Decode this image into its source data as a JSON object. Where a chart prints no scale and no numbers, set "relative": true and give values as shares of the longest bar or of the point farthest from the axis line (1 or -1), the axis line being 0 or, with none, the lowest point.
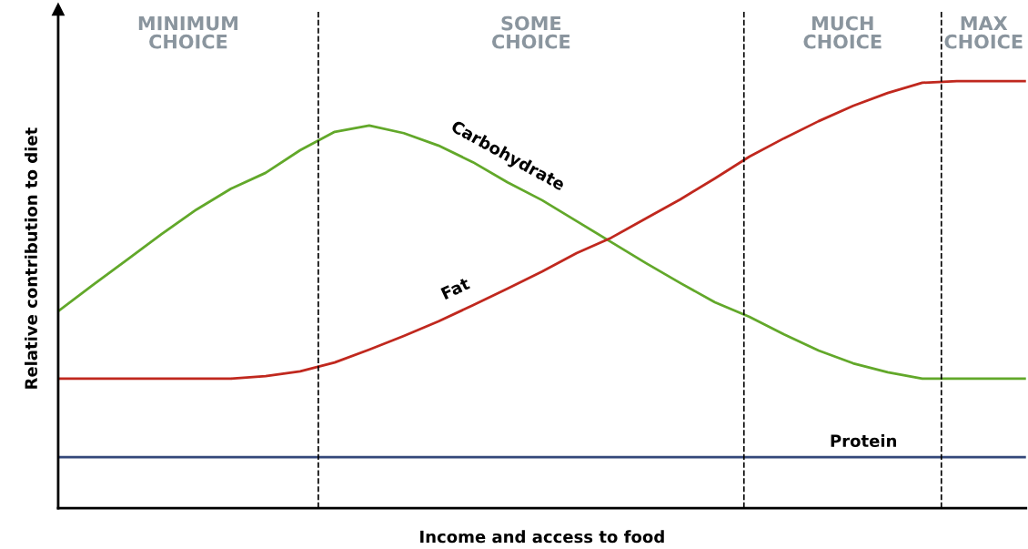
{
  "chart_data": {
    "type": "line",
    "relative": true,
    "xlabel": "Income and access to food",
    "ylabel": "Relative contribution to diet",
    "categories": [
      null,
      null,
      null,
      null,
      null,
      null,
      null,
      null,
      null,
      null,
      null,
      null,
      null,
      null,
      null,
      null,
      null,
      null,
      null,
      null,
      null,
      null,
      null,
      null,
      null,
      null,
      null,
      null,
      null
    ],
    "series": [
      {
        "name": "Carbohydrate",
        "color": "#62a82a",
        "values": [
          0.461,
          0.522,
          0.582,
          0.642,
          0.699,
          0.748,
          0.785,
          0.838,
          0.881,
          0.896,
          0.878,
          0.849,
          0.81,
          0.763,
          0.721,
          0.672,
          0.623,
          0.574,
          0.527,
          0.482,
          0.448,
          0.407,
          0.369,
          0.339,
          0.318,
          0.303,
          0.303,
          0.303,
          0.303
        ]
      },
      {
        "name": "Fat",
        "color": "#c0281e",
        "values": [
          0.303,
          0.303,
          0.303,
          0.303,
          0.303,
          0.303,
          0.309,
          0.32,
          0.341,
          0.371,
          0.403,
          0.437,
          0.475,
          0.514,
          0.554,
          0.597,
          0.633,
          0.678,
          0.723,
          0.772,
          0.823,
          0.866,
          0.906,
          0.942,
          0.972,
          0.996,
          1,
          1,
          1
        ]
      },
      {
        "name": "Protein",
        "color": "#34487a",
        "values": [
          0.119,
          0.119,
          0.119,
          0.119,
          0.119,
          0.119,
          0.119,
          0.119,
          0.119,
          0.119,
          0.119,
          0.119,
          0.119,
          0.119,
          0.119,
          0.119,
          0.119,
          0.119,
          0.119,
          0.119,
          0.119,
          0.119,
          0.119,
          0.119,
          0.119,
          0.119,
          0.119,
          0.119,
          0.119
        ]
      }
    ],
    "annotations": [
      "MINIMUM\nCHOICE",
      "SOME\nCHOICE",
      "MUCH\nCHOICE",
      "MAX\nCHOICE"
    ],
    "grid": false,
    "legend": false,
    "marker": "none",
    "line_style": "solid"
  }
}
